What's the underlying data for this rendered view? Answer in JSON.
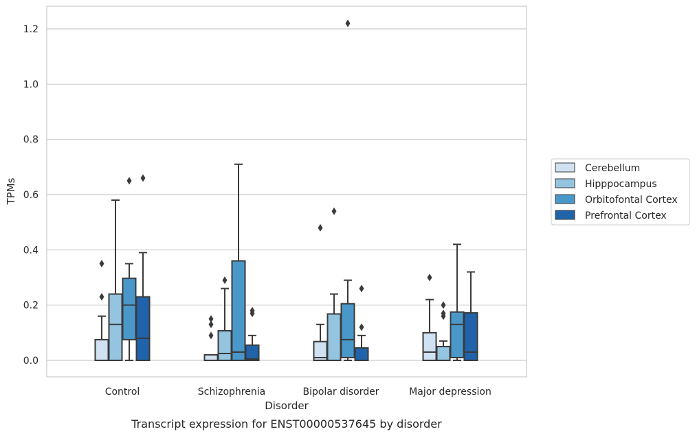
{
  "caption": "Transcript expression for ENST00000537645 by disorder",
  "chart_data": {
    "type": "box",
    "title": "",
    "xlabel": "Disorder",
    "ylabel": "TPMs",
    "ylim": [
      -0.06,
      1.28
    ],
    "yticks": [
      0.0,
      0.2,
      0.4,
      0.6,
      0.8,
      1.0,
      1.2
    ],
    "ytick_labels": [
      "0.0",
      "0.2",
      "0.4",
      "0.6",
      "0.8",
      "1.0",
      "1.2"
    ],
    "grid": "horizontal",
    "legend_position": "right",
    "categories": [
      "Control",
      "Schizophrenia",
      "Bipolar disorder",
      "Major depression"
    ],
    "series": [
      {
        "name": "Cerebellum",
        "color": "#d0e1f2",
        "boxes": [
          {
            "whislo": 0.0,
            "q1": 0.0,
            "med": 0.0,
            "q3": 0.075,
            "whishi": 0.16,
            "fliers": [
              0.23,
              0.35
            ]
          },
          {
            "whislo": 0.0,
            "q1": 0.0,
            "med": 0.0,
            "q3": 0.02,
            "whishi": 0.02,
            "fliers": [
              0.09,
              0.13,
              0.15
            ]
          },
          {
            "whislo": 0.0,
            "q1": 0.0,
            "med": 0.01,
            "q3": 0.068,
            "whishi": 0.13,
            "fliers": [
              0.48
            ]
          },
          {
            "whislo": 0.0,
            "q1": 0.0,
            "med": 0.03,
            "q3": 0.1,
            "whishi": 0.22,
            "fliers": [
              0.3
            ]
          }
        ]
      },
      {
        "name": "Hipppocampus",
        "color": "#94c4df",
        "boxes": [
          {
            "whislo": 0.0,
            "q1": 0.0,
            "med": 0.13,
            "q3": 0.24,
            "whishi": 0.58,
            "fliers": []
          },
          {
            "whislo": 0.0,
            "q1": 0.0,
            "med": 0.025,
            "q3": 0.107,
            "whishi": 0.26,
            "fliers": [
              0.29
            ]
          },
          {
            "whislo": 0.0,
            "q1": 0.0,
            "med": 0.0,
            "q3": 0.168,
            "whishi": 0.24,
            "fliers": [
              0.54
            ]
          },
          {
            "whislo": 0.0,
            "q1": 0.0,
            "med": 0.0,
            "q3": 0.05,
            "whishi": 0.07,
            "fliers": [
              0.16,
              0.17,
              0.2
            ]
          }
        ]
      },
      {
        "name": "Orbitofontal Cortex",
        "color": "#4a98c9",
        "boxes": [
          {
            "whislo": 0.0,
            "q1": 0.075,
            "med": 0.2,
            "q3": 0.297,
            "whishi": 0.35,
            "fliers": [
              0.65
            ]
          },
          {
            "whislo": 0.0,
            "q1": 0.0,
            "med": 0.03,
            "q3": 0.36,
            "whishi": 0.71,
            "fliers": []
          },
          {
            "whislo": 0.0,
            "q1": 0.01,
            "med": 0.075,
            "q3": 0.205,
            "whishi": 0.29,
            "fliers": [
              1.22
            ]
          },
          {
            "whislo": 0.0,
            "q1": 0.01,
            "med": 0.13,
            "q3": 0.175,
            "whishi": 0.42,
            "fliers": []
          }
        ]
      },
      {
        "name": "Prefrontal Cortex",
        "color": "#2163aa",
        "boxes": [
          {
            "whislo": 0.0,
            "q1": 0.0,
            "med": 0.08,
            "q3": 0.23,
            "whishi": 0.39,
            "fliers": [
              0.66
            ]
          },
          {
            "whislo": 0.0,
            "q1": 0.0,
            "med": 0.005,
            "q3": 0.055,
            "whishi": 0.09,
            "fliers": [
              0.17,
              0.18
            ]
          },
          {
            "whislo": 0.0,
            "q1": 0.0,
            "med": 0.0,
            "q3": 0.045,
            "whishi": 0.09,
            "fliers": [
              0.12,
              0.26
            ]
          },
          {
            "whislo": 0.0,
            "q1": 0.0,
            "med": 0.03,
            "q3": 0.172,
            "whishi": 0.32,
            "fliers": []
          }
        ]
      }
    ]
  }
}
